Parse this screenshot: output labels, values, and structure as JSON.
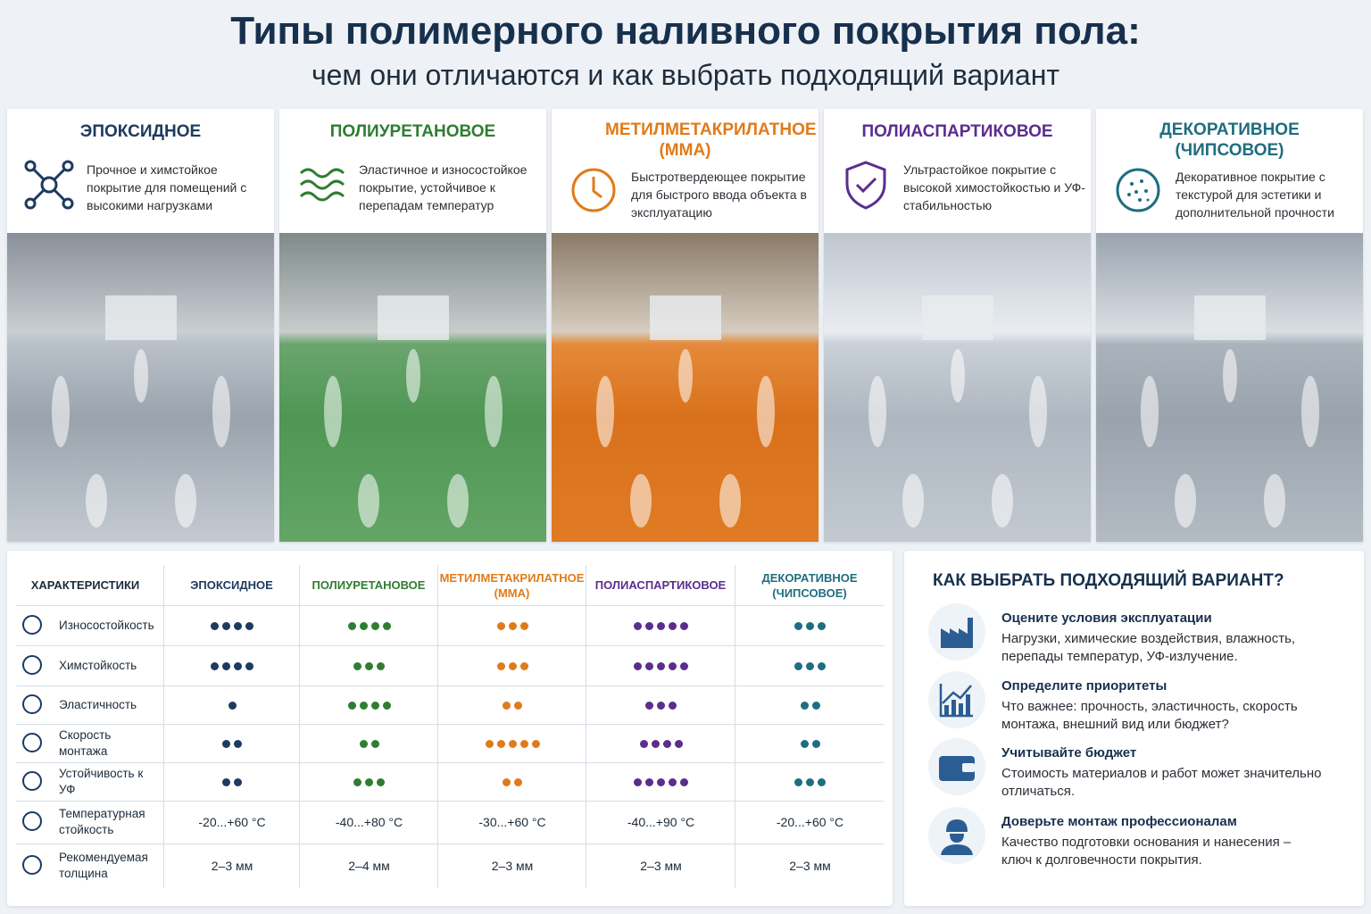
{
  "header": {
    "title": "Типы полимерного наливного покрытия пола:",
    "subtitle": "чем они отличаются и как выбрать подходящий вариант"
  },
  "cards": [
    {
      "title": "ЭПОКСИДНОЕ",
      "description": "Прочное и химстойкое покрытие для помещений с высокими нагрузками",
      "color": "#1d3a5f"
    },
    {
      "title": "ПОЛИУРЕТАНОВОЕ",
      "description": "Эластичное и износостойкое покрытие, устойчивое к перепадам температур",
      "color": "#2f7d32"
    },
    {
      "title": "МЕТИЛМЕТАКРИЛАТНОЕ (ММА)",
      "description": "Быстротвердеющее покрытие для быстрого ввода объекта в эксплуатацию",
      "color": "#e07b1a"
    },
    {
      "title": "ПОЛИАСПАРТИКОВОЕ",
      "description": "Ультрастойкое покрытие с высокой химостойкостью и УФ-стабильностью",
      "color": "#5b2d8e"
    },
    {
      "title": "ДЕКОРАТИВНОЕ (ЧИПСОВОЕ)",
      "description": "Декоративное покрытие с текстурой для эстетики и дополнительной прочности",
      "color": "#1f6d80"
    }
  ],
  "table": {
    "header_label": "ХАРАКТЕРИСТИКИ",
    "columns": [
      "ЭПОКСИДНОЕ",
      "ПОЛИУРЕТАНОВОЕ",
      "МЕТИЛМЕТАКРИЛАТНОЕ (ММА)",
      "ПОЛИАСПАРТИКОВОЕ",
      "ДЕКОРАТИВНОЕ (ЧИПСОВОЕ)"
    ],
    "rows": [
      {
        "label": "Износостойкость",
        "values": [
          4,
          4,
          3,
          5,
          3
        ]
      },
      {
        "label": "Химстойкость",
        "values": [
          4,
          3,
          3,
          5,
          3
        ]
      },
      {
        "label": "Эластичность",
        "values": [
          1,
          4,
          2,
          3,
          2
        ]
      },
      {
        "label": "Скорость монтажа",
        "values": [
          2,
          2,
          5,
          4,
          2
        ]
      },
      {
        "label": "Устойчивость к УФ",
        "values": [
          2,
          3,
          2,
          5,
          3
        ]
      },
      {
        "label": "Температурная стойкость",
        "values": [
          "-20...+60 °С",
          "-40...+80 °С",
          "-30...+60 °С",
          "-40...+90 °С",
          "-20...+60 °С"
        ]
      },
      {
        "label": "Рекомендуемая толщина",
        "values": [
          "2–3 мм",
          "2–4 мм",
          "2–3 мм",
          "2–3 мм",
          "2–3 мм"
        ]
      }
    ]
  },
  "tips": {
    "title": "КАК ВЫБРАТЬ ПОДХОДЯЩИЙ ВАРИАНТ?",
    "items": [
      {
        "title": "Оцените условия эксплуатации",
        "text": "Нагрузки, химические воздействия, влажность, перепады температур, УФ-излучение."
      },
      {
        "title": "Определите приоритеты",
        "text": "Что важнее: прочность, эластичность, скорость монтажа, внешний вид или бюджет?"
      },
      {
        "title": "Учитывайте бюджет",
        "text": "Стоимость материалов и работ может значительно отличаться."
      },
      {
        "title": "Доверьте монтаж профессионалам",
        "text": "Качество подготовки основания и нанесения – ключ к долговечности покрытия."
      }
    ]
  }
}
